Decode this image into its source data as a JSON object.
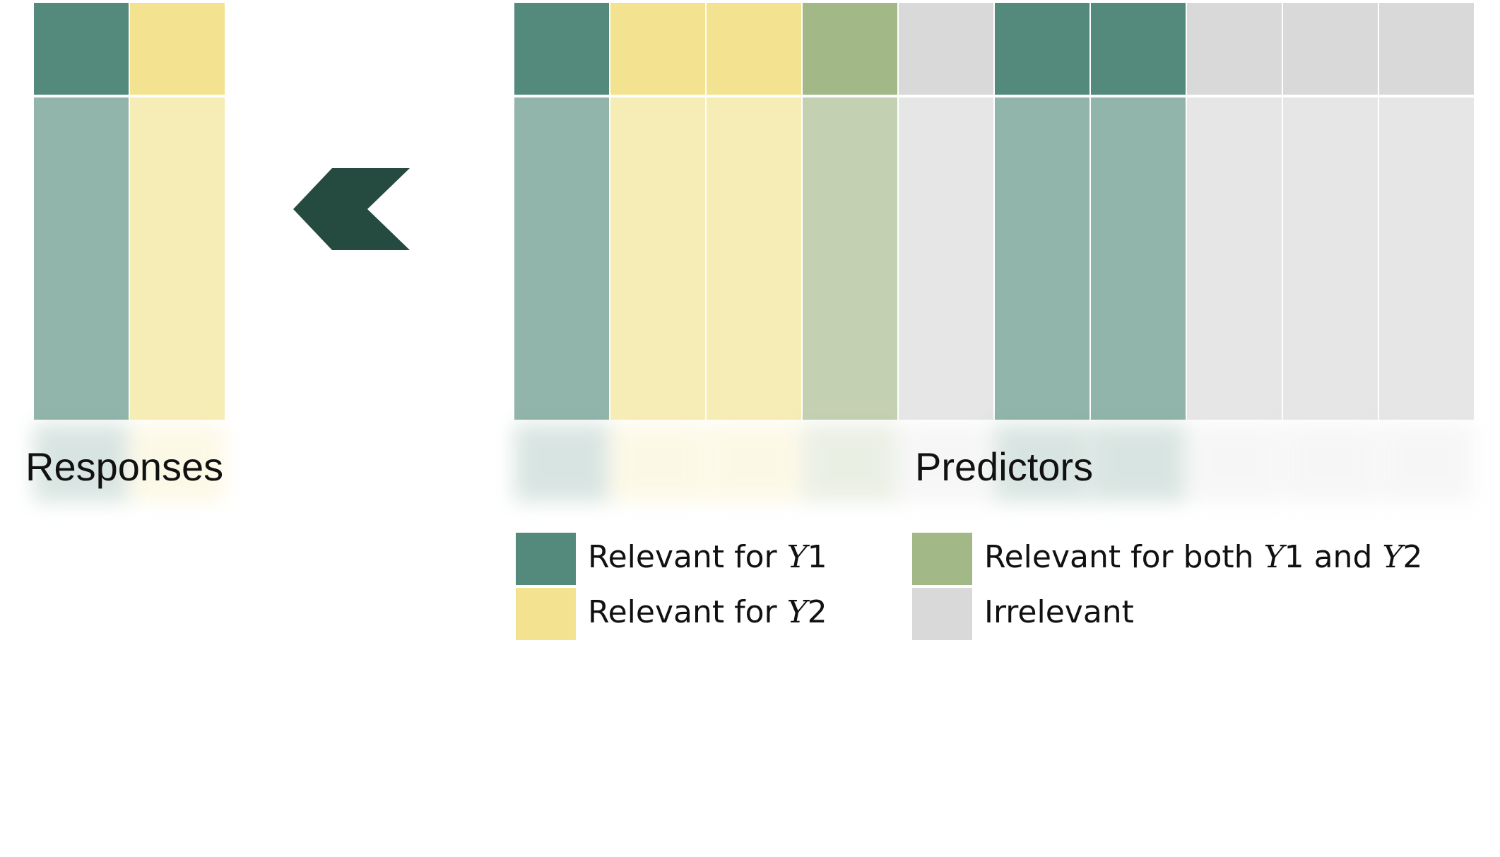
{
  "colors": {
    "y1": "#548a7c",
    "y1_light": "#92b5ab",
    "y2": "#f3e390",
    "y2_light": "#f6edb6",
    "both": "#a3b887",
    "both_light": "#c4d0b2",
    "irrelevant": "#d9d9d9",
    "irrelevant_light": "#e6e6e6",
    "arrow": "#254b41"
  },
  "responses": {
    "label": "Responses",
    "columns": [
      "y1",
      "y2"
    ]
  },
  "predictors": {
    "label": "Predictors",
    "columns": [
      "y1",
      "y2",
      "y2",
      "both",
      "irrelevant",
      "y1",
      "y1",
      "irrelevant",
      "irrelevant",
      "irrelevant"
    ]
  },
  "arrow": {
    "direction": "left",
    "icon": "chevron-left-icon"
  },
  "legend": [
    {
      "key": "y1",
      "prefix": "Relevant for ",
      "var1": "Y",
      "num1": "1"
    },
    {
      "key": "y2",
      "prefix": "Relevant for ",
      "var1": "Y",
      "num1": "2"
    },
    {
      "key": "both",
      "prefix": "Relevant for both ",
      "var1": "Y",
      "num1": "1",
      "mid": " and ",
      "var2": "Y",
      "num2": "2"
    },
    {
      "key": "irrelevant",
      "prefix": "Irrelevant"
    }
  ]
}
